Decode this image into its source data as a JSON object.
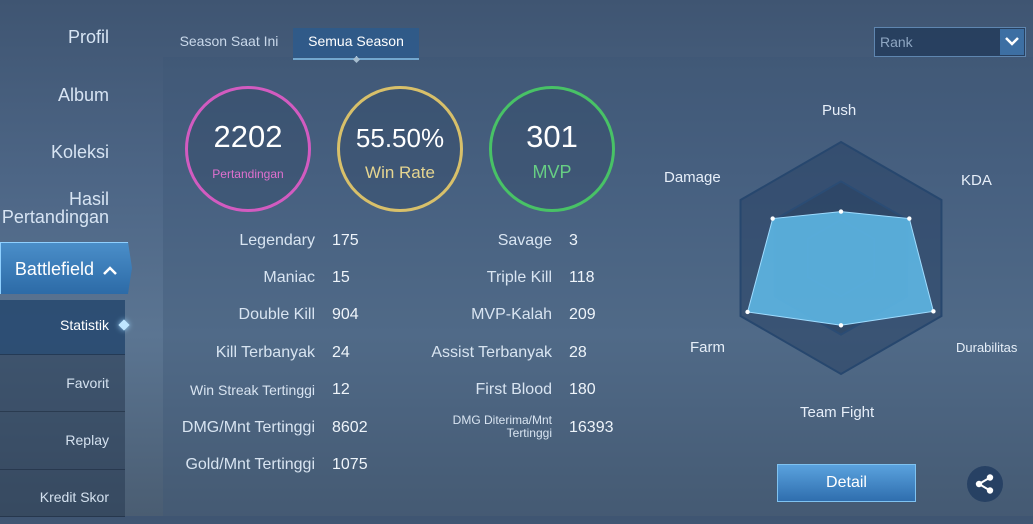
{
  "sidebar": {
    "items": [
      {
        "label": "Profil"
      },
      {
        "label": "Album"
      },
      {
        "label": "Koleksi"
      },
      {
        "label_line1": "Hasil",
        "label_line2": "Pertandingan"
      }
    ],
    "battlefield": {
      "label": "Battlefield",
      "icon": "chevron-up-icon"
    },
    "sub_items": [
      {
        "label": "Statistik",
        "active": true
      },
      {
        "label": "Favorit"
      },
      {
        "label": "Replay"
      },
      {
        "label": "Kredit Skor"
      }
    ]
  },
  "tabs": [
    {
      "label": "Season Saat Ini"
    },
    {
      "label": "Semua Season",
      "active": true
    }
  ],
  "rank_select": {
    "value": "Rank"
  },
  "summary": {
    "matches": {
      "value": "2202",
      "label": "Pertandingan",
      "color": "#d25bc0"
    },
    "win_rate": {
      "value": "55.50%",
      "label": "Win Rate",
      "color": "#d8c06a"
    },
    "mvp": {
      "value": "301",
      "label": "MVP",
      "color": "#48c266"
    }
  },
  "stats_left": [
    {
      "label": "Legendary",
      "value": "175"
    },
    {
      "label": "Maniac",
      "value": "15"
    },
    {
      "label": "Double Kill",
      "value": "904"
    },
    {
      "label": "Kill Terbanyak",
      "value": "24"
    },
    {
      "label": "Win Streak Tertinggi",
      "value": "12"
    },
    {
      "label": "DMG/Mnt Tertinggi",
      "value": "8602"
    },
    {
      "label": "Gold/Mnt Tertinggi",
      "value": "1075"
    }
  ],
  "stats_right": [
    {
      "label": "Savage",
      "value": "3"
    },
    {
      "label": "Triple Kill",
      "value": "118"
    },
    {
      "label": "MVP-Kalah",
      "value": "209"
    },
    {
      "label": "Assist Terbanyak",
      "value": "28"
    },
    {
      "label": "First Blood",
      "value": "180"
    },
    {
      "label_line1": "DMG Diterima/Mnt",
      "label_line2": "Tertinggi",
      "value": "16393"
    }
  ],
  "radar": {
    "axes": [
      "Push",
      "KDA",
      "Durabilitas",
      "Team Fight",
      "Farm",
      "Damage"
    ],
    "values": [
      0.4,
      0.68,
      0.92,
      0.58,
      0.93,
      0.68
    ],
    "fill_color": "#5eb8e6"
  },
  "buttons": {
    "detail": "Detail",
    "share_icon": "share-icon"
  }
}
